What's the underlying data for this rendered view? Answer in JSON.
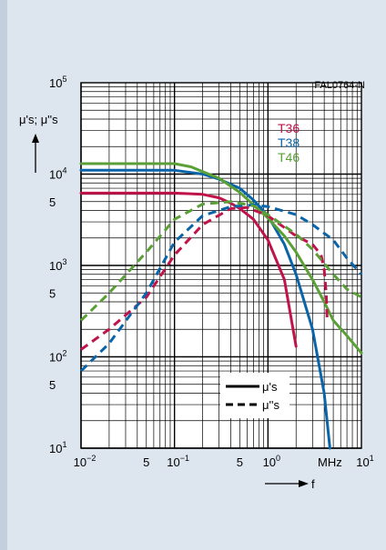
{
  "colors": {
    "panel_bg": "#dde5ef",
    "panel_edge": "#c3cfdd",
    "grid": "#000000",
    "T36": "#c0134a",
    "T38": "#0a64a8",
    "T46": "#5aa037"
  },
  "figure_code": "FAL0764-N",
  "y_axis_label": "μ's; μ''s",
  "x_axis_label": "f",
  "x_unit": "MHz",
  "x_ticks": [
    {
      "value": 0.01,
      "label": "10",
      "exp": "−2"
    },
    {
      "value": 0.05,
      "label": "5",
      "exp": ""
    },
    {
      "value": 0.1,
      "label": "10",
      "exp": "−1"
    },
    {
      "value": 0.5,
      "label": "5",
      "exp": ""
    },
    {
      "value": 1,
      "label": "10",
      "exp": "0"
    },
    {
      "value": 10,
      "label": "10",
      "exp": "1"
    }
  ],
  "y_ticks": [
    {
      "value": 10,
      "label": "10",
      "exp": "1"
    },
    {
      "value": 50,
      "label": "5",
      "exp": ""
    },
    {
      "value": 100,
      "label": "10",
      "exp": "2"
    },
    {
      "value": 500,
      "label": "5",
      "exp": ""
    },
    {
      "value": 1000,
      "label": "10",
      "exp": "3"
    },
    {
      "value": 5000,
      "label": "5",
      "exp": ""
    },
    {
      "value": 10000,
      "label": "10",
      "exp": "4"
    },
    {
      "value": 100000,
      "label": "10",
      "exp": "5"
    }
  ],
  "legend_materials": [
    "T36",
    "T38",
    "T46"
  ],
  "legend_styles": [
    {
      "style": "solid",
      "label": "μ's"
    },
    {
      "style": "dashed",
      "label": "μ''s"
    }
  ],
  "chart_data": {
    "type": "line",
    "title": "",
    "xlabel": "f",
    "ylabel": "μ's; μ''s",
    "x_unit": "MHz",
    "xscale": "log",
    "yscale": "log",
    "xlim": [
      0.01,
      10
    ],
    "ylim": [
      10,
      100000
    ],
    "grid": true,
    "legend_placement": "top-right",
    "series": [
      {
        "name": "T36",
        "quantity": "μ's",
        "style": "solid",
        "color": "#c0134a",
        "points": [
          [
            0.01,
            6200
          ],
          [
            0.1,
            6200
          ],
          [
            0.2,
            6000
          ],
          [
            0.3,
            5500
          ],
          [
            0.4,
            4800
          ],
          [
            0.5,
            4200
          ],
          [
            0.7,
            3200
          ],
          [
            1,
            1900
          ],
          [
            1.5,
            700
          ],
          [
            2,
            130
          ]
        ]
      },
      {
        "name": "T38",
        "quantity": "μ's",
        "style": "solid",
        "color": "#0a64a8",
        "points": [
          [
            0.01,
            11000
          ],
          [
            0.1,
            11000
          ],
          [
            0.2,
            10000
          ],
          [
            0.3,
            8800
          ],
          [
            0.5,
            7000
          ],
          [
            0.7,
            5200
          ],
          [
            1,
            3500
          ],
          [
            1.5,
            1700
          ],
          [
            2,
            800
          ],
          [
            3,
            200
          ],
          [
            4,
            40
          ],
          [
            4.6,
            10
          ]
        ]
      },
      {
        "name": "T46",
        "quantity": "μ's",
        "style": "solid",
        "color": "#5aa037",
        "points": [
          [
            0.01,
            13000
          ],
          [
            0.1,
            13000
          ],
          [
            0.15,
            12000
          ],
          [
            0.3,
            9000
          ],
          [
            0.5,
            6300
          ],
          [
            1,
            3300
          ],
          [
            1.5,
            2100
          ],
          [
            2,
            1400
          ],
          [
            3,
            700
          ],
          [
            4,
            400
          ],
          [
            5,
            250
          ],
          [
            7,
            170
          ],
          [
            10,
            110
          ]
        ]
      },
      {
        "name": "T36",
        "quantity": "μ''s",
        "style": "dashed",
        "color": "#c0134a",
        "points": [
          [
            0.01,
            120
          ],
          [
            0.02,
            200
          ],
          [
            0.05,
            450
          ],
          [
            0.1,
            1300
          ],
          [
            0.2,
            2800
          ],
          [
            0.4,
            4200
          ],
          [
            0.6,
            4300
          ],
          [
            1,
            3500
          ],
          [
            2,
            2100
          ],
          [
            3,
            1700
          ],
          [
            3.7,
            1300
          ],
          [
            4,
            900
          ],
          [
            4.2,
            500
          ],
          [
            4.3,
            250
          ]
        ]
      },
      {
        "name": "T38",
        "quantity": "μ''s",
        "style": "dashed",
        "color": "#0a64a8",
        "points": [
          [
            0.01,
            70
          ],
          [
            0.02,
            140
          ],
          [
            0.05,
            500
          ],
          [
            0.1,
            1800
          ],
          [
            0.2,
            3500
          ],
          [
            0.4,
            4400
          ],
          [
            0.7,
            4600
          ],
          [
            1,
            4400
          ],
          [
            2,
            3600
          ],
          [
            3,
            2800
          ],
          [
            5,
            1900
          ],
          [
            7,
            1200
          ],
          [
            10,
            800
          ]
        ]
      },
      {
        "name": "T46",
        "quantity": "μ''s",
        "style": "dashed",
        "color": "#5aa037",
        "points": [
          [
            0.01,
            250
          ],
          [
            0.02,
            500
          ],
          [
            0.05,
            1400
          ],
          [
            0.1,
            3200
          ],
          [
            0.2,
            4700
          ],
          [
            0.4,
            5000
          ],
          [
            0.7,
            4500
          ],
          [
            1,
            3600
          ],
          [
            2,
            2200
          ],
          [
            3,
            1500
          ],
          [
            5,
            800
          ],
          [
            7,
            550
          ],
          [
            10,
            450
          ]
        ]
      }
    ]
  }
}
